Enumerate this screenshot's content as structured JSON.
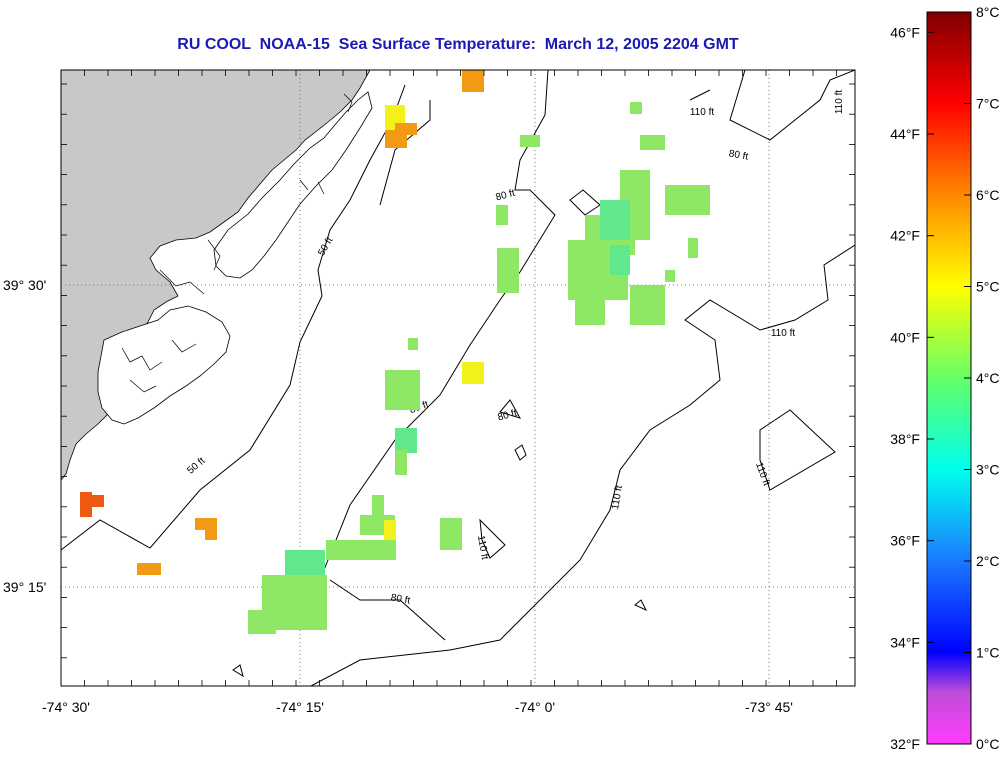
{
  "title": "RU COOL  NOAA-15  Sea Surface Temperature:  March 12, 2005 2204 GMT",
  "axes": {
    "lon_ticks": [
      "-74° 30'",
      "-74° 15'",
      "-74° 0'",
      "-73° 45'"
    ],
    "lat_ticks": [
      "39° 30'",
      "39° 15'"
    ]
  },
  "contours": {
    "labels": [
      "50 ft",
      "50 ft",
      "80 ft",
      "80 ft",
      "80 ft",
      "80 ft",
      "80 ft",
      "110 ft",
      "110 ft",
      "110 ft",
      "110 ft",
      "110 ft",
      "110 ft"
    ]
  },
  "colorbar": {
    "fahrenheit": [
      "46°F",
      "44°F",
      "42°F",
      "40°F",
      "38°F",
      "36°F",
      "34°F",
      "32°F"
    ],
    "celsius": [
      "8°C",
      "7°C",
      "6°C",
      "5°C",
      "4°C",
      "3°C",
      "2°C",
      "1°C",
      "0°C"
    ]
  },
  "colors": {
    "title": "#1a1ab4",
    "land": "#c8c8c8",
    "sst_green": "#8ee866",
    "sst_teal": "#62e88c",
    "sst_yellow": "#f2f21a",
    "sst_orange": "#f29a14",
    "sst_red_orange": "#ee5a12"
  },
  "sst_patches_degF": [
    {
      "region": "offshore central cluster",
      "temp_f": 39.8
    },
    {
      "region": "southwest cluster",
      "temp_f": 39.5
    },
    {
      "region": "nearshore north",
      "temp_f": 43.5
    },
    {
      "region": "nearshore south",
      "temp_f": 44.6
    }
  ]
}
